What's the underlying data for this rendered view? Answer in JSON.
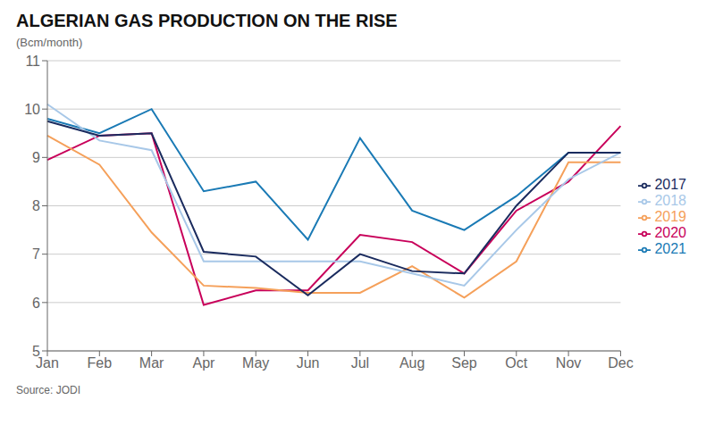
{
  "chart_data": {
    "type": "line",
    "title": "ALGERIAN GAS PRODUCTION ON THE RISE",
    "ylabel": "(Bcm/month)",
    "annotations": [
      "Source: JODI"
    ],
    "categories": [
      "Jan",
      "Feb",
      "Mar",
      "Apr",
      "May",
      "Jun",
      "Jul",
      "Aug",
      "Sep",
      "Oct",
      "Nov",
      "Dec"
    ],
    "series": [
      {
        "name": "2021",
        "color": "#1a7ab5",
        "values": [
          9.8,
          9.5,
          10.0,
          8.3,
          8.5,
          7.3,
          9.4,
          7.9,
          7.5,
          8.2,
          9.1,
          9.1
        ]
      },
      {
        "name": "2020",
        "color": "#c8005a",
        "values": [
          8.95,
          9.45,
          9.5,
          5.95,
          6.25,
          6.25,
          7.4,
          7.25,
          6.6,
          7.9,
          8.5,
          9.65
        ]
      },
      {
        "name": "2019",
        "color": "#f5a05a",
        "values": [
          9.45,
          8.85,
          7.45,
          6.35,
          6.3,
          6.2,
          6.2,
          6.75,
          6.1,
          6.85,
          8.9,
          8.9
        ]
      },
      {
        "name": "2018",
        "color": "#a8c8e8",
        "values": [
          10.1,
          9.35,
          9.15,
          6.85,
          6.85,
          6.85,
          6.85,
          6.6,
          6.35,
          7.5,
          8.55,
          9.1
        ]
      },
      {
        "name": "2017",
        "color": "#1a2b5e",
        "values": [
          9.75,
          9.45,
          9.5,
          7.05,
          6.95,
          6.15,
          7.0,
          6.65,
          6.6,
          8.0,
          9.1,
          9.1
        ]
      }
    ],
    "ylim": [
      5,
      11
    ],
    "yticks": [
      5,
      6,
      7,
      8,
      9,
      10,
      11
    ],
    "grid": true,
    "legend": "right"
  }
}
